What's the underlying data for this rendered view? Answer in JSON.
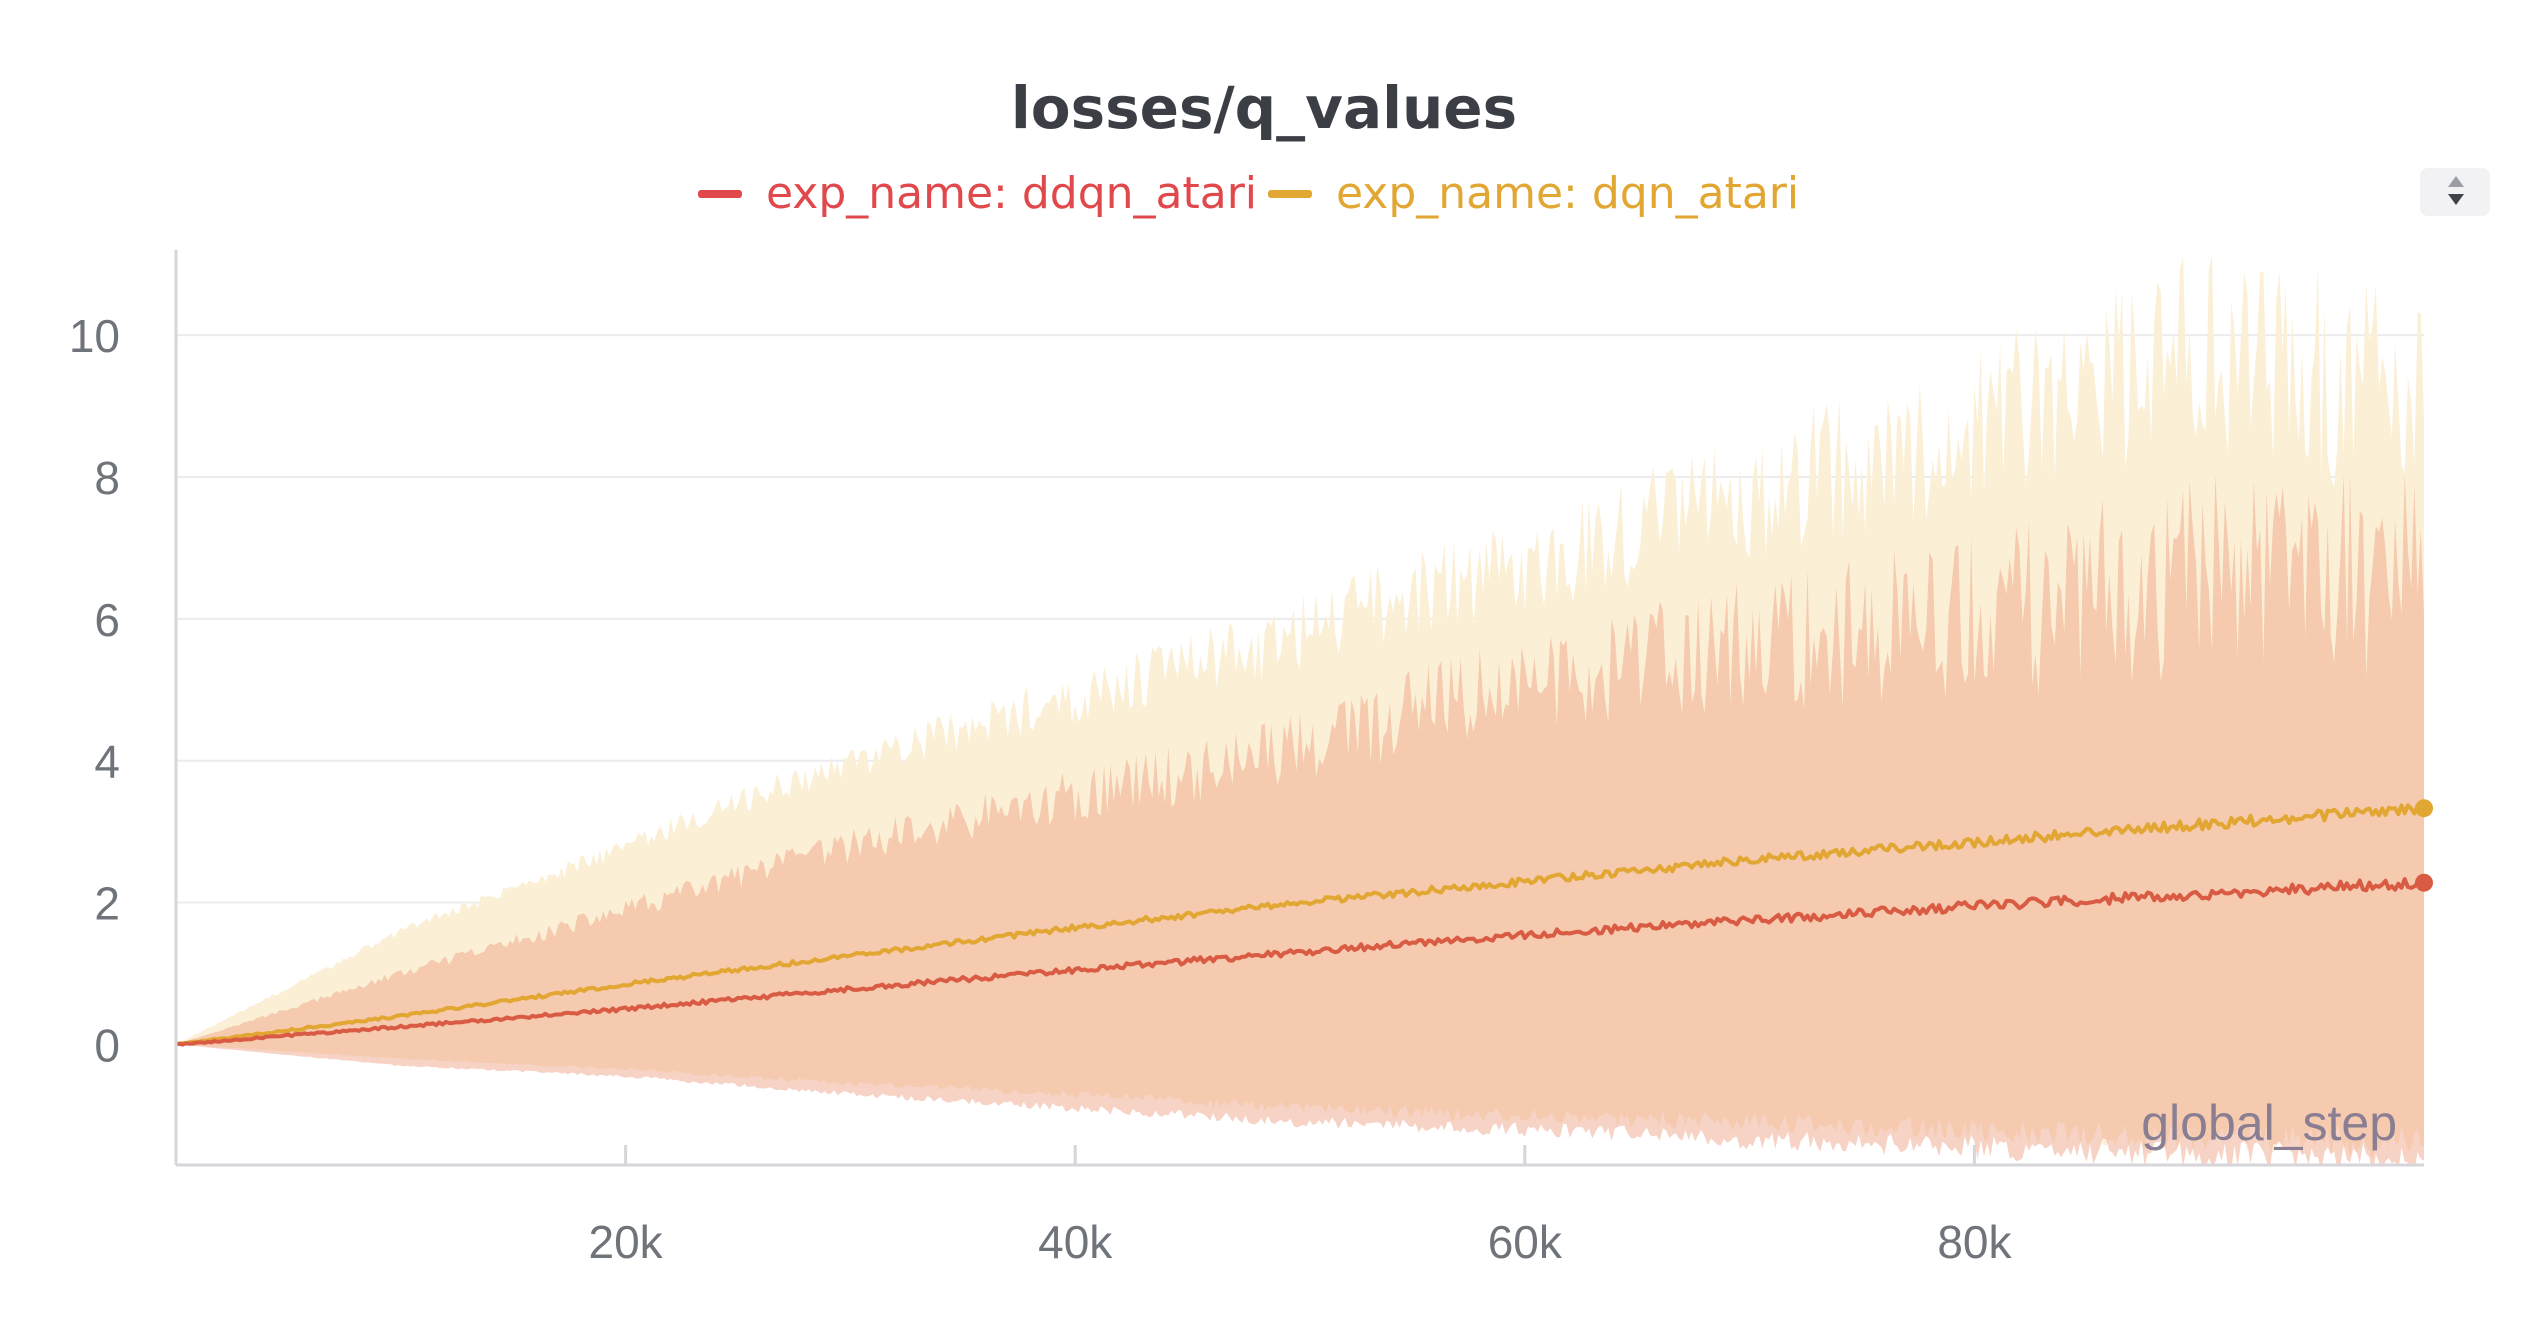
{
  "chart_data": {
    "type": "line",
    "title": "losses/q_values",
    "xlabel": "global_step",
    "ylabel": "",
    "xlim": [
      0,
      100000
    ],
    "ylim": [
      -1.7,
      11.2
    ],
    "xticks": [
      20000,
      40000,
      60000,
      80000
    ],
    "xtick_labels": [
      "20k",
      "40k",
      "60k",
      "80k"
    ],
    "yticks": [
      0,
      2,
      4,
      6,
      8,
      10
    ],
    "ytick_labels": [
      "0",
      "2",
      "4",
      "6",
      "8",
      "10"
    ],
    "grid": true,
    "legend_position": "top",
    "series": [
      {
        "name": "exp_name: ddqn_atari",
        "color": "#d95b43",
        "legend_color": "#e0484b",
        "band_color": "#f6d9d9",
        "x": [
          0,
          10000,
          20000,
          30000,
          40000,
          50000,
          60000,
          70000,
          80000,
          90000,
          100000
        ],
        "mean": [
          0.0,
          0.25,
          0.5,
          0.78,
          1.05,
          1.3,
          1.55,
          1.75,
          1.95,
          2.12,
          2.28
        ],
        "min": [
          0.0,
          -0.3,
          -0.45,
          -0.7,
          -0.9,
          -1.1,
          -1.2,
          -1.35,
          -1.45,
          -1.55,
          -1.65
        ],
        "max": [
          0.0,
          1.0,
          1.9,
          2.8,
          3.5,
          4.2,
          5.1,
          5.6,
          6.0,
          6.6,
          6.9
        ]
      },
      {
        "name": "exp_name: dqn_atari",
        "color": "#e2a633",
        "legend_color": "#e2a633",
        "band_color": "#fbf0d6",
        "x": [
          0,
          10000,
          20000,
          30000,
          40000,
          50000,
          60000,
          70000,
          80000,
          90000,
          100000
        ],
        "mean": [
          0.0,
          0.4,
          0.85,
          1.25,
          1.65,
          2.0,
          2.3,
          2.6,
          2.85,
          3.1,
          3.33
        ],
        "min": [
          0.0,
          -0.2,
          -0.35,
          -0.55,
          -0.7,
          -0.9,
          -1.0,
          -1.1,
          -1.2,
          -1.3,
          -1.4
        ],
        "max": [
          0.0,
          1.6,
          2.8,
          4.0,
          4.9,
          5.8,
          6.8,
          7.7,
          8.7,
          9.8,
          9.2
        ]
      }
    ]
  }
}
